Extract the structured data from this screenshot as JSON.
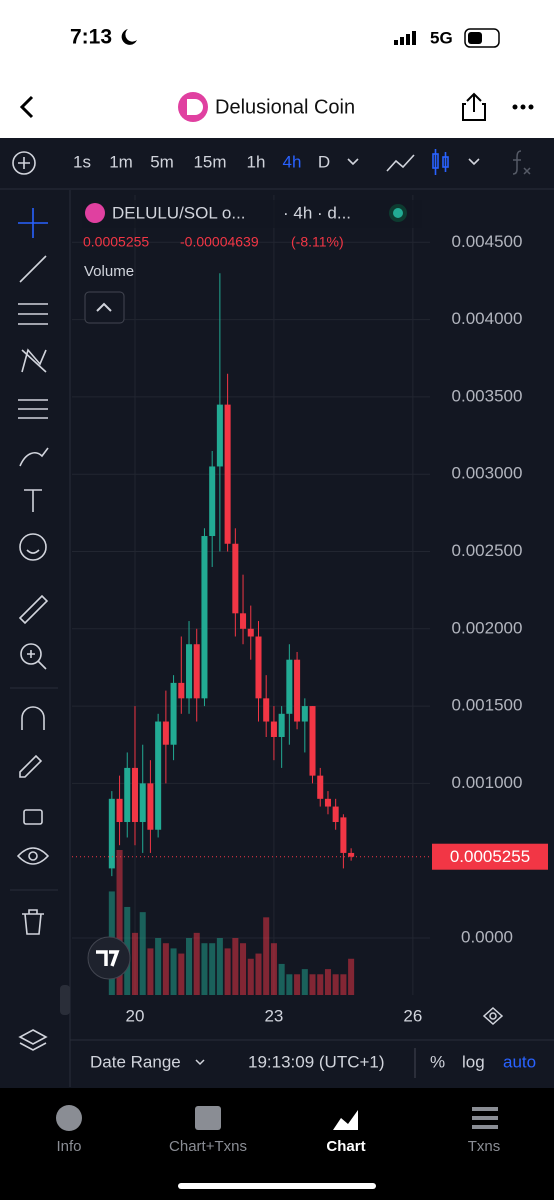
{
  "status": {
    "time": "7:13",
    "network": "5G"
  },
  "header": {
    "title": "Delusional Coin"
  },
  "toolbar": {
    "intervals": [
      "1s",
      "1m",
      "5m",
      "15m",
      "1h",
      "4h",
      "D"
    ],
    "active": "4h"
  },
  "legend": {
    "symbol": "DELULU/SOL o...",
    "interval": "· 4h · d...",
    "change": "-0.00004639",
    "change_pct": "(-8.11%)",
    "volume_label": "Volume"
  },
  "chart_data": {
    "type": "candlestick",
    "x": [
      19.5,
      19.667,
      19.833,
      20,
      20.167,
      20.333,
      20.5,
      20.667,
      20.833,
      21,
      21.167,
      21.333,
      21.5,
      21.667,
      21.833,
      22,
      22.167,
      22.333,
      22.5,
      22.667,
      22.833,
      23,
      23.167,
      23.333,
      23.5,
      23.667,
      23.833,
      24,
      24.167,
      24.333,
      24.5,
      24.667
    ],
    "open": [
      0.00045,
      0.0009,
      0.00075,
      0.0011,
      0.00075,
      0.001,
      0.0007,
      0.0014,
      0.00125,
      0.00165,
      0.00155,
      0.0019,
      0.00155,
      0.0026,
      0.00305,
      0.00345,
      0.00255,
      0.0021,
      0.002,
      0.00195,
      0.00155,
      0.0014,
      0.0013,
      0.00145,
      0.0018,
      0.0014,
      0.0015,
      0.00105,
      0.0009,
      0.00085,
      0.00078,
      0.00055
    ],
    "high": [
      0.00095,
      0.00105,
      0.0012,
      0.0015,
      0.00125,
      0.00115,
      0.00145,
      0.0016,
      0.0017,
      0.00195,
      0.00205,
      0.002,
      0.00265,
      0.00315,
      0.0043,
      0.00365,
      0.00265,
      0.00235,
      0.00215,
      0.00205,
      0.0017,
      0.0015,
      0.0015,
      0.0019,
      0.00185,
      0.00155,
      0.0015,
      0.0011,
      0.00095,
      0.0009,
      0.0008,
      0.00058
    ],
    "low": [
      0.0004,
      0.0006,
      0.00065,
      0.0006,
      0.00055,
      0.00055,
      0.00065,
      0.001,
      0.00115,
      0.00145,
      0.00145,
      0.0014,
      0.0015,
      0.0024,
      0.0025,
      0.0025,
      0.00195,
      0.0019,
      0.0018,
      0.0014,
      0.0013,
      0.00115,
      0.0011,
      0.00125,
      0.00135,
      0.0012,
      0.001,
      0.00085,
      0.0008,
      0.0007,
      0.00045,
      0.0005
    ],
    "close": [
      0.0009,
      0.00075,
      0.0011,
      0.00075,
      0.001,
      0.0007,
      0.0014,
      0.00125,
      0.00165,
      0.00155,
      0.0019,
      0.00155,
      0.0026,
      0.00305,
      0.00345,
      0.00255,
      0.0021,
      0.002,
      0.00195,
      0.00155,
      0.0014,
      0.0013,
      0.00145,
      0.0018,
      0.0014,
      0.0015,
      0.00105,
      0.0009,
      0.00085,
      0.00075,
      0.00055,
      0.0005255
    ],
    "volume": [
      100,
      140,
      85,
      60,
      80,
      45,
      55,
      50,
      45,
      40,
      55,
      60,
      50,
      50,
      55,
      45,
      55,
      50,
      35,
      40,
      75,
      50,
      30,
      20,
      20,
      25,
      20,
      20,
      25,
      20,
      20,
      35
    ],
    "up_color": "#22ab94",
    "down_color": "#f23645",
    "last_price": 0.0005255,
    "xlim": [
      18.64,
      26.37
    ],
    "xticks": [
      20,
      23,
      26
    ],
    "ylim": [
      -0.000369,
      0.004806
    ],
    "yticks": [
      {
        "value": 0,
        "label": "0.0000"
      },
      {
        "value": 0.001,
        "label": "0.001000"
      },
      {
        "value": 0.0015,
        "label": "0.001500"
      },
      {
        "value": 0.002,
        "label": "0.002000"
      },
      {
        "value": 0.0025,
        "label": "0.002500"
      },
      {
        "value": 0.003,
        "label": "0.003000"
      },
      {
        "value": 0.0035,
        "label": "0.003500"
      },
      {
        "value": 0.004,
        "label": "0.004000"
      },
      {
        "value": 0.0045,
        "label": "0.004500"
      }
    ],
    "grid": true
  },
  "footer": {
    "date_range": "Date Range",
    "time": "19:13:09 (UTC+1)",
    "percent": "%",
    "log": "log",
    "auto": "auto"
  },
  "tabs": {
    "items": [
      "Info",
      "Chart+Txns",
      "Chart",
      "Txns"
    ],
    "active": "Chart"
  }
}
